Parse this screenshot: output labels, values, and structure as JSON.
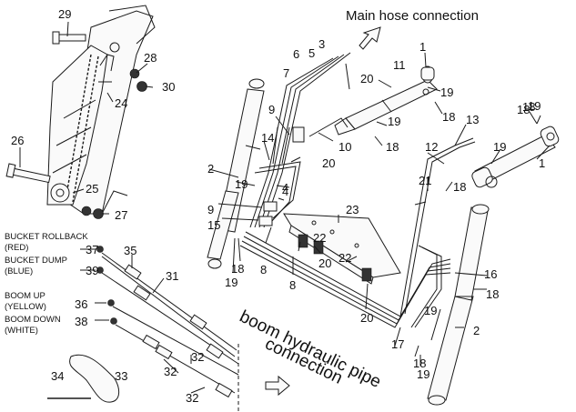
{
  "header": {
    "main_hose": "Main hose connection",
    "boom_pipe_1": "boom hydraulic pipe",
    "boom_pipe_2": "connection"
  },
  "side_labels": {
    "bucket_rollback": "BUCKET ROLLBACK",
    "red": "(RED)",
    "bucket_dump": "BUCKET DUMP",
    "blue": "(BLUE)",
    "boom_up": "BOOM UP",
    "yellow": "(YELLOW)",
    "boom_down": "BOOM DOWN",
    "white": "(WHITE)"
  },
  "callouts": [
    "29",
    "28",
    "30",
    "24",
    "26",
    "25",
    "27",
    "1",
    "3",
    "5",
    "6",
    "7",
    "11",
    "20",
    "19",
    "18",
    "9",
    "10",
    "13",
    "14",
    "12",
    "2",
    "19",
    "20",
    "21",
    "4",
    "4",
    "9",
    "23",
    "15",
    "22",
    "8",
    "8",
    "20",
    "22",
    "16",
    "18",
    "19",
    "17",
    "18",
    "19",
    "2",
    "37",
    "35",
    "39",
    "31",
    "36",
    "38",
    "34",
    "33",
    "32",
    "32",
    "32",
    "18",
    "19",
    "18",
    "1",
    "18",
    "19",
    "20",
    "19",
    "18",
    "18",
    "19"
  ]
}
